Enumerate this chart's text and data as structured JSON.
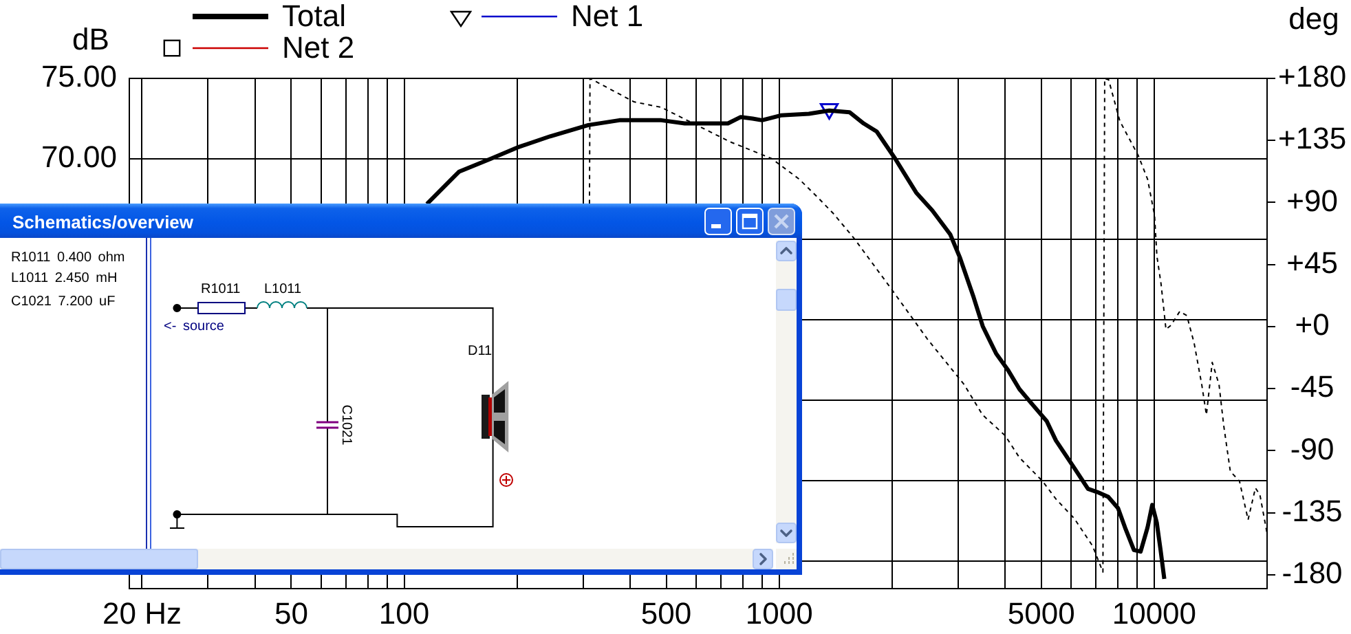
{
  "chart_data": {
    "type": "line",
    "ylabel": "dB",
    "y2label": "deg",
    "log": "x",
    "grid": true,
    "legend": "top left",
    "xlim": [
      18.5,
      20000
    ],
    "xticks": [
      {
        "value": 20,
        "label": "20 Hz"
      },
      {
        "value": 30,
        "label": null
      },
      {
        "value": 40,
        "label": null
      },
      50,
      {
        "value": 60,
        "label": null
      },
      {
        "value": 70,
        "label": null
      },
      {
        "value": 80,
        "label": null
      },
      {
        "value": 90,
        "label": null
      },
      100,
      {
        "value": 200,
        "label": null
      },
      {
        "value": 300,
        "label": null
      },
      {
        "value": 400,
        "label": null
      },
      500,
      {
        "value": 600,
        "label": null
      },
      {
        "value": 700,
        "label": null
      },
      {
        "value": 800,
        "label": null
      },
      {
        "value": 900,
        "label": null
      },
      1000,
      {
        "value": 2000,
        "label": null
      },
      {
        "value": 3000,
        "label": null
      },
      {
        "value": 4000,
        "label": null
      },
      5000,
      {
        "value": 6000,
        "label": null
      },
      {
        "value": 7000,
        "label": null
      },
      {
        "value": 8000,
        "label": null
      },
      {
        "value": 9000,
        "label": null
      },
      10000
    ],
    "ylim": [
      43.3,
      75
    ],
    "yticks": [
      {
        "value": 45,
        "label": null
      },
      {
        "value": 50,
        "label": null
      },
      {
        "value": 55,
        "label": null
      },
      {
        "value": 60,
        "label": null
      },
      {
        "value": 65,
        "label": null
      },
      {
        "value": 70,
        "label": "70.00"
      },
      {
        "value": 75,
        "label": "75.00"
      }
    ],
    "y2lim": [
      -190,
      180
    ],
    "y2ticks": [
      {
        "value": 180,
        "label": "+180"
      },
      {
        "value": 135,
        "label": "+135"
      },
      {
        "value": 90,
        "label": "+90"
      },
      {
        "value": 45,
        "label": "+45"
      },
      {
        "value": 0,
        "label": "+0"
      },
      -45,
      -90,
      -135,
      -180
    ],
    "series": [
      {
        "name": "Total",
        "color": "#000000",
        "x": [
          115,
          140,
          170,
          200,
          245,
          310,
          375,
          455,
          485,
          560,
          640,
          730,
          790,
          850,
          900,
          1010,
          1200,
          1360,
          1540,
          1680,
          1820,
          2040,
          2320,
          2560,
          2860,
          3030,
          3300,
          3490,
          3790,
          4070,
          4370,
          4750,
          5170,
          5470,
          6120,
          6660,
          7050,
          7540,
          8010,
          8360,
          8830,
          9200,
          9600,
          9880,
          10160,
          10400,
          10640
        ],
        "values": [
          67.2,
          69.2,
          70.0,
          70.7,
          71.4,
          72.1,
          72.4,
          72.4,
          72.4,
          72.2,
          72.2,
          72.2,
          72.6,
          72.5,
          72.4,
          72.7,
          72.8,
          73.0,
          72.9,
          72.2,
          71.7,
          70.0,
          67.9,
          66.8,
          65.3,
          63.9,
          61.4,
          59.6,
          57.9,
          56.9,
          55.7,
          54.7,
          53.7,
          52.5,
          50.8,
          49.5,
          49.3,
          49.0,
          48.3,
          47.1,
          45.7,
          45.6,
          47.1,
          48.5,
          47.4,
          45.7,
          43.9
        ]
      },
      {
        "name": "Net 1",
        "color": "#0000cc",
        "marker": "triangle",
        "x": [
          1360
        ],
        "values": [
          73.1
        ]
      },
      {
        "name": "Net 2",
        "color": "#cc0000",
        "marker": "square"
      },
      {
        "color": "#000000",
        "axis": "y2",
        "line_style": "dashed",
        "x": [
          312,
          313,
          410,
          485,
          574,
          740,
          953,
          1130,
          1264,
          1395,
          1584,
          1983,
          2484,
          3113,
          3486,
          4004,
          4372,
          5036,
          5470,
          6116,
          6850,
          7300,
          7380,
          7560,
          8100,
          9070,
          9600,
          10020,
          10170,
          10430,
          10750,
          11090,
          11700,
          12220,
          12780,
          13390,
          13780,
          14280,
          14890,
          15330,
          15960,
          16880,
          17800,
          18620,
          19140,
          19970
        ],
        "values": [
          89,
          180,
          163,
          159,
          149,
          134,
          122,
          107,
          94,
          82,
          64,
          28,
          -9,
          -42,
          -64,
          -79,
          -95,
          -112,
          -125,
          -139,
          -159,
          -178,
          180,
          179,
          149,
          124,
          107,
          81,
          51,
          31,
          -2,
          1,
          11,
          8,
          -12,
          -42,
          -64,
          -26,
          -42,
          -72,
          -105,
          -112,
          -140,
          -117,
          -122,
          -149
        ]
      }
    ],
    "annotations": [
      "Schematics/overview",
      "R1011 0.400 ohm",
      "L1011 2.450 mH",
      "C1021 7.200 uF",
      "R1011",
      "L1011",
      "<- source",
      "D11",
      "C1021"
    ]
  }
}
